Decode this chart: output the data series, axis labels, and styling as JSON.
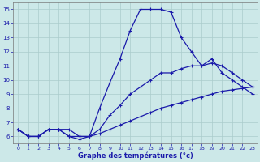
{
  "hours": [
    0,
    1,
    2,
    3,
    4,
    5,
    6,
    7,
    8,
    9,
    10,
    11,
    12,
    13,
    14,
    15,
    16,
    17,
    18,
    19,
    20,
    21,
    22,
    23
  ],
  "temp_main": [
    6.5,
    6.0,
    6.0,
    6.5,
    6.5,
    6.5,
    6.0,
    6.0,
    8.0,
    9.8,
    11.5,
    13.5,
    15.0,
    15.0,
    15.0,
    14.8,
    13.0,
    12.0,
    11.0,
    11.5,
    10.5,
    10.0,
    9.5,
    9.0
  ],
  "temp_line2": [
    6.5,
    6.0,
    6.0,
    6.5,
    6.5,
    6.0,
    6.0,
    6.0,
    6.5,
    7.5,
    8.2,
    9.0,
    9.5,
    10.0,
    10.5,
    10.5,
    10.8,
    11.0,
    11.0,
    11.2,
    11.0,
    10.5,
    10.0,
    9.5
  ],
  "temp_line3": [
    6.5,
    6.0,
    6.0,
    6.5,
    6.5,
    6.0,
    5.8,
    6.0,
    6.2,
    6.5,
    6.8,
    7.1,
    7.4,
    7.7,
    8.0,
    8.2,
    8.4,
    8.6,
    8.8,
    9.0,
    9.2,
    9.3,
    9.4,
    9.5
  ],
  "line_color": "#1a1aaa",
  "bg_color": "#cce8e8",
  "grid_color": "#aacccc",
  "xlabel": "Graphe des températures (°c)",
  "ylim": [
    5.5,
    15.5
  ],
  "xlim": [
    -0.5,
    23.5
  ],
  "yticks": [
    6,
    7,
    8,
    9,
    10,
    11,
    12,
    13,
    14,
    15
  ],
  "xticks": [
    0,
    1,
    2,
    3,
    4,
    5,
    6,
    7,
    8,
    9,
    10,
    11,
    12,
    13,
    14,
    15,
    16,
    17,
    18,
    19,
    20,
    21,
    22,
    23
  ]
}
